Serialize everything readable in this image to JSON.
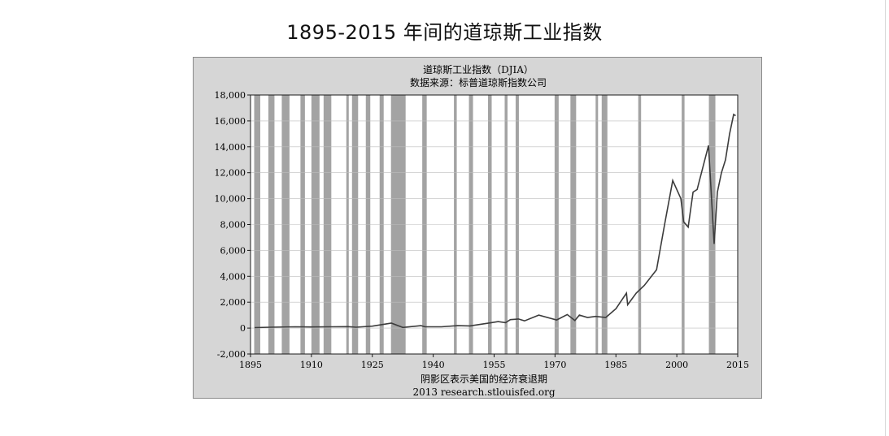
{
  "page_title": "1895-2015 年间的道琼斯工业指数",
  "chart_data": {
    "type": "line",
    "title": "道琼斯工业指数（DJIA）",
    "subtitle": "数据来源：标普道琼斯指数公司",
    "xlabel": "",
    "ylabel": "",
    "xlim": [
      1895,
      2015
    ],
    "ylim": [
      -2000,
      18000
    ],
    "xticks": [
      1895,
      1910,
      1925,
      1940,
      1955,
      1970,
      1985,
      2000,
      2015
    ],
    "xtick_labels": [
      "1895",
      "1910",
      "1925",
      "1940",
      "1955",
      "1970",
      "1985",
      "2000",
      "2015"
    ],
    "yticks": [
      -2000,
      0,
      2000,
      4000,
      6000,
      8000,
      10000,
      12000,
      14000,
      16000,
      18000
    ],
    "ytick_labels": [
      "-2,000",
      "0",
      "2,000",
      "4,000",
      "6,000",
      "8,000",
      "10,000",
      "12,000",
      "14,000",
      "16,000",
      "18,000"
    ],
    "grid": true,
    "series": [
      {
        "x": [
          1896,
          1900,
          1906,
          1910,
          1915,
          1919,
          1921,
          1925,
          1928,
          1929.7,
          1932.5,
          1937,
          1938,
          1942,
          1946,
          1949,
          1954,
          1956,
          1957.8,
          1959,
          1961,
          1962.5,
          1966,
          1970.4,
          1973,
          1974.9,
          1976,
          1978,
          1980,
          1982.5,
          1985,
          1987.6,
          1987.9,
          1990,
          1992,
          1995,
          1997,
          1999,
          2000,
          2001,
          2001.7,
          2002.8,
          2004,
          2005,
          2007.8,
          2009.2,
          2010,
          2011,
          2012,
          2013,
          2014,
          2014.5
        ],
        "y": [
          40,
          70,
          100,
          90,
          100,
          110,
          70,
          150,
          300,
          380,
          50,
          190,
          100,
          100,
          190,
          170,
          400,
          500,
          420,
          650,
          700,
          560,
          1000,
          630,
          1050,
          580,
          1000,
          820,
          900,
          820,
          1500,
          2700,
          1800,
          2700,
          3300,
          4500,
          8000,
          11400,
          10700,
          10000,
          8200,
          7800,
          10500,
          10700,
          14100,
          6500,
          10500,
          12000,
          13000,
          15000,
          16500,
          16400
        ]
      }
    ],
    "recession_shading": [
      [
        1895.9,
        1897.4
      ],
      [
        1899.4,
        1900.9
      ],
      [
        1902.7,
        1904.6
      ],
      [
        1907.3,
        1908.4
      ],
      [
        1910.0,
        1912.0
      ],
      [
        1913.0,
        1914.9
      ],
      [
        1918.6,
        1919.2
      ],
      [
        1920.0,
        1921.5
      ],
      [
        1923.4,
        1924.5
      ],
      [
        1926.8,
        1927.8
      ],
      [
        1929.6,
        1933.2
      ],
      [
        1937.3,
        1938.4
      ],
      [
        1945.1,
        1945.8
      ],
      [
        1948.8,
        1949.8
      ],
      [
        1953.5,
        1954.4
      ],
      [
        1957.6,
        1958.3
      ],
      [
        1960.3,
        1961.1
      ],
      [
        1969.9,
        1970.9
      ],
      [
        1973.8,
        1975.2
      ],
      [
        1980.0,
        1980.6
      ],
      [
        1981.5,
        1982.9
      ],
      [
        1990.5,
        1991.2
      ],
      [
        2001.2,
        2001.9
      ],
      [
        2007.9,
        2009.5
      ]
    ],
    "footnote": "阴影区表示美国的经济衰退期",
    "source": "2013 research.stlouisfed.org"
  },
  "colors": {
    "plot_background": "#ffffff",
    "recession": "#a3a3a3",
    "frame": "#d6d6d6",
    "line": "#3c3c3c",
    "axis": "#1a1a1a"
  }
}
